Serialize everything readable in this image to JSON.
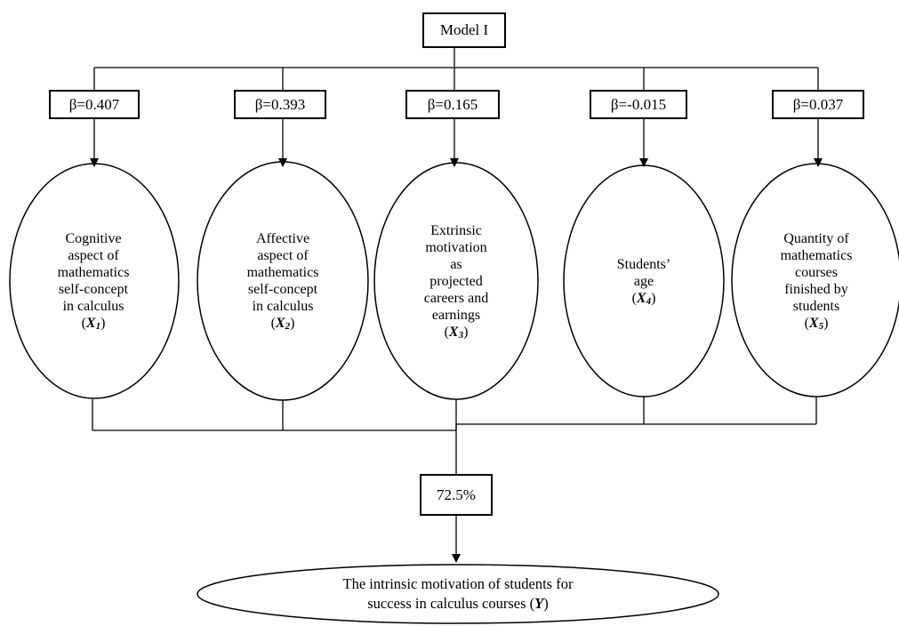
{
  "model": {
    "title": "Model I"
  },
  "betas": [
    "β=0.407",
    "β=0.393",
    "β=0.165",
    "β=-0.015",
    "β=0.037"
  ],
  "predictors": [
    {
      "lines": [
        "Cognitive",
        "aspect of",
        "mathematics",
        "self-concept",
        "in calculus"
      ],
      "var": "X",
      "sub": "1"
    },
    {
      "lines": [
        "Affective",
        "aspect of",
        "mathematics",
        "self-concept",
        "in calculus"
      ],
      "var": "X",
      "sub": "2"
    },
    {
      "lines": [
        "Extrinsic",
        "motivation",
        "as",
        "projected",
        "careers and",
        "earnings"
      ],
      "var": "X",
      "sub": "3"
    },
    {
      "lines": [
        "Students’",
        "age"
      ],
      "var": "X",
      "sub": "4"
    },
    {
      "lines": [
        "Quantity of",
        "mathematics",
        "courses",
        "finished by",
        "students"
      ],
      "var": "X",
      "sub": "5"
    }
  ],
  "r_squared": "72.5%",
  "outcome": {
    "line1": "The intrinsic motivation of students for",
    "line2": "success in calculus courses",
    "var": "Y"
  }
}
